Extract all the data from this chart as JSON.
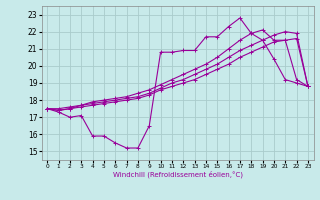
{
  "xlabel": "Windchill (Refroidissement éolien,°C)",
  "ylabel": "",
  "background_color": "#c8eaea",
  "grid_color": "#aacccc",
  "line_color": "#990099",
  "x_ticks": [
    0,
    1,
    2,
    3,
    4,
    5,
    6,
    7,
    8,
    9,
    10,
    11,
    12,
    13,
    14,
    15,
    16,
    17,
    18,
    19,
    20,
    21,
    22,
    23
  ],
  "ylim": [
    14.5,
    23.5
  ],
  "xlim": [
    -0.5,
    23.5
  ],
  "yticks": [
    15,
    16,
    17,
    18,
    19,
    20,
    21,
    22,
    23
  ],
  "series": [
    {
      "x": [
        0,
        1,
        2,
        3,
        4,
        5,
        6,
        7,
        8,
        9,
        10,
        11,
        12,
        13,
        14,
        15,
        16,
        17,
        18,
        19,
        20,
        21,
        22,
        23
      ],
      "y": [
        17.5,
        17.3,
        17.0,
        17.1,
        15.9,
        15.9,
        15.5,
        15.2,
        15.2,
        16.5,
        20.8,
        20.8,
        20.9,
        20.9,
        21.7,
        21.7,
        22.3,
        22.8,
        21.9,
        21.5,
        20.4,
        19.2,
        19.0,
        18.8
      ]
    },
    {
      "x": [
        0,
        1,
        2,
        3,
        4,
        5,
        6,
        7,
        8,
        9,
        10,
        11,
        12,
        13,
        14,
        15,
        16,
        17,
        18,
        19,
        20,
        21,
        22,
        23
      ],
      "y": [
        17.5,
        17.4,
        17.5,
        17.6,
        17.7,
        17.8,
        17.9,
        18.0,
        18.1,
        18.3,
        18.6,
        18.8,
        19.0,
        19.2,
        19.5,
        19.8,
        20.1,
        20.5,
        20.8,
        21.1,
        21.4,
        21.5,
        21.6,
        18.8
      ]
    },
    {
      "x": [
        0,
        1,
        2,
        3,
        4,
        5,
        6,
        7,
        8,
        9,
        10,
        11,
        12,
        13,
        14,
        15,
        16,
        17,
        18,
        19,
        20,
        21,
        22,
        23
      ],
      "y": [
        17.5,
        17.4,
        17.5,
        17.7,
        17.8,
        17.9,
        18.0,
        18.1,
        18.2,
        18.4,
        18.7,
        19.0,
        19.2,
        19.5,
        19.8,
        20.1,
        20.5,
        20.9,
        21.2,
        21.5,
        21.8,
        22.0,
        21.9,
        18.8
      ]
    },
    {
      "x": [
        0,
        1,
        2,
        3,
        4,
        5,
        6,
        7,
        8,
        9,
        10,
        11,
        12,
        13,
        14,
        15,
        16,
        17,
        18,
        19,
        20,
        21,
        22,
        23
      ],
      "y": [
        17.5,
        17.5,
        17.6,
        17.7,
        17.9,
        18.0,
        18.1,
        18.2,
        18.4,
        18.6,
        18.9,
        19.2,
        19.5,
        19.8,
        20.1,
        20.5,
        21.0,
        21.5,
        21.9,
        22.1,
        21.5,
        21.5,
        19.2,
        18.8
      ]
    }
  ]
}
